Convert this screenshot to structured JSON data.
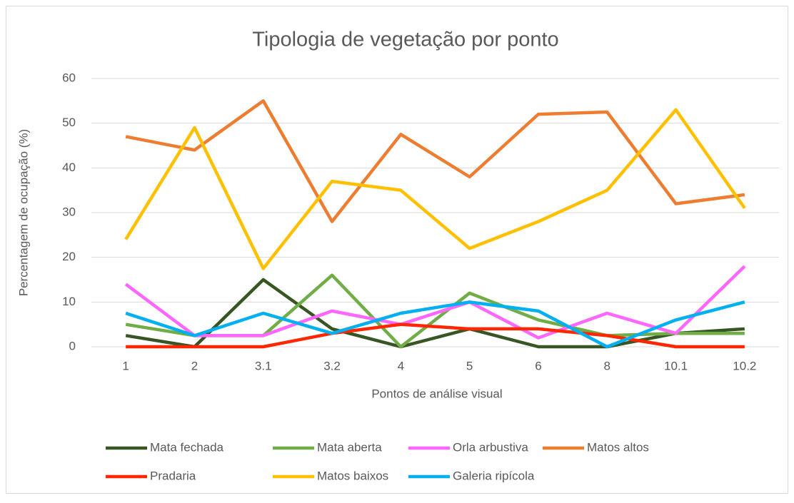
{
  "chart_data": {
    "type": "line",
    "title": "Tipologia de vegetação por ponto",
    "x_label": "Pontos de análise visual",
    "y_label": "Percentagem de ocupação (%)",
    "categories": [
      "1",
      "2",
      "3.1",
      "3.2",
      "4",
      "5",
      "6",
      "8",
      "10.1",
      "10.2"
    ],
    "ylim": [
      0,
      60
    ],
    "yticks": [
      0,
      10,
      20,
      30,
      40,
      50,
      60
    ],
    "grid": true,
    "legend": "bottom",
    "series": [
      {
        "name": "Mata fechada",
        "color": "#375623",
        "values": [
          2.5,
          0,
          15,
          4,
          0,
          4,
          0,
          0,
          3,
          4
        ]
      },
      {
        "name": "Mata aberta",
        "color": "#70ad47",
        "values": [
          5,
          2.5,
          2.5,
          16,
          0,
          12,
          6,
          2.5,
          3,
          3
        ]
      },
      {
        "name": "Orla arbustiva",
        "color": "#ff66ff",
        "values": [
          14,
          2.5,
          2.5,
          8,
          5,
          10,
          2,
          7.5,
          3,
          18
        ]
      },
      {
        "name": "Matos altos",
        "color": "#ed7d31",
        "values": [
          47,
          44,
          55,
          28,
          47.5,
          38,
          52,
          52.5,
          32,
          34
        ]
      },
      {
        "name": "Pradaria",
        "color": "#ff2600",
        "values": [
          0,
          0,
          0,
          3,
          5,
          4,
          4,
          2.5,
          0,
          0
        ]
      },
      {
        "name": "Matos baixos",
        "color": "#ffc000",
        "values": [
          24,
          49,
          17.5,
          37,
          35,
          22,
          28,
          35,
          53,
          31
        ]
      },
      {
        "name": "Galeria ripícola",
        "color": "#00b0f0",
        "values": [
          7.5,
          2.5,
          7.5,
          3,
          7.5,
          10,
          8,
          0,
          6,
          10
        ]
      }
    ]
  }
}
